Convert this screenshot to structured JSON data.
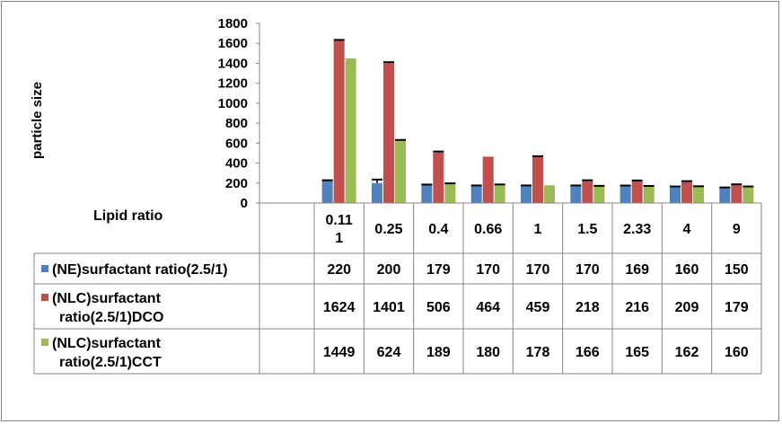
{
  "chart_data": {
    "type": "bar",
    "categories": [
      "0.11\n1",
      "0.25",
      "0.4",
      "0.66",
      "1",
      "1.5",
      "2.33",
      "4",
      "9"
    ],
    "series": [
      {
        "name": "(NE)surfactant ratio(2.5/1)",
        "color": "#4F81BD",
        "values": [
          220,
          200,
          179,
          170,
          170,
          170,
          169,
          160,
          150
        ],
        "errors": [
          8,
          35,
          6,
          6,
          6,
          6,
          6,
          6,
          6
        ]
      },
      {
        "name": "(NLC)surfactant ratio(2.5/1)DCO",
        "color": "#C0504D",
        "values": [
          1624,
          1401,
          506,
          464,
          459,
          218,
          216,
          209,
          179
        ],
        "errors": [
          10,
          10,
          10,
          0,
          10,
          10,
          10,
          10,
          8
        ]
      },
      {
        "name": "(NLC)surfactant ratio(2.5/1)CCT",
        "color": "#9BBB59",
        "values": [
          1449,
          624,
          189,
          180,
          178,
          166,
          165,
          162,
          160
        ],
        "errors": [
          0,
          8,
          8,
          6,
          0,
          6,
          6,
          6,
          6
        ]
      }
    ],
    "xlabel": "Lipid ratio",
    "ylabel": "particle size",
    "ylim": [
      0,
      1800
    ],
    "yticks": [
      0,
      200,
      400,
      600,
      800,
      1000,
      1200,
      1400,
      1600,
      1800
    ],
    "legend": "data-table"
  }
}
